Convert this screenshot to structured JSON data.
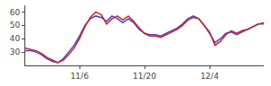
{
  "chart_data": {
    "type": "line",
    "categories": [
      null,
      null,
      null,
      null,
      null,
      null,
      null,
      null,
      null,
      null,
      "11/6",
      null,
      null,
      null,
      null,
      null,
      null,
      null,
      null,
      null,
      null,
      null,
      "11/20",
      null,
      null,
      null,
      null,
      null,
      null,
      null,
      null,
      null,
      null,
      null,
      "12/4",
      null,
      null,
      null,
      null,
      null,
      null,
      null,
      null,
      null,
      null
    ],
    "series": [
      {
        "color": "#4444cc",
        "values": [
          31,
          31,
          30,
          28,
          25,
          23,
          22,
          25,
          30,
          35,
          42,
          50,
          55,
          57,
          56,
          53,
          57,
          55,
          52,
          55,
          52,
          47,
          44,
          43,
          43,
          42,
          44,
          46,
          48,
          51,
          55,
          57,
          55,
          50,
          44,
          37,
          40,
          44,
          45,
          43,
          45,
          47,
          49,
          51,
          51
        ]
      },
      {
        "color": "#cc2222",
        "values": [
          33,
          32,
          31,
          29,
          26,
          24,
          22,
          24,
          28,
          33,
          40,
          49,
          56,
          60,
          58,
          51,
          55,
          57,
          54,
          57,
          53,
          48,
          44,
          42,
          42,
          41,
          43,
          45,
          47,
          50,
          54,
          56,
          55,
          50,
          45,
          35,
          38,
          43,
          46,
          44,
          46,
          47,
          49,
          51,
          52
        ]
      }
    ],
    "ylim": [
      20,
      65
    ],
    "yticks": [
      30,
      40,
      50,
      60
    ],
    "grid": false
  }
}
